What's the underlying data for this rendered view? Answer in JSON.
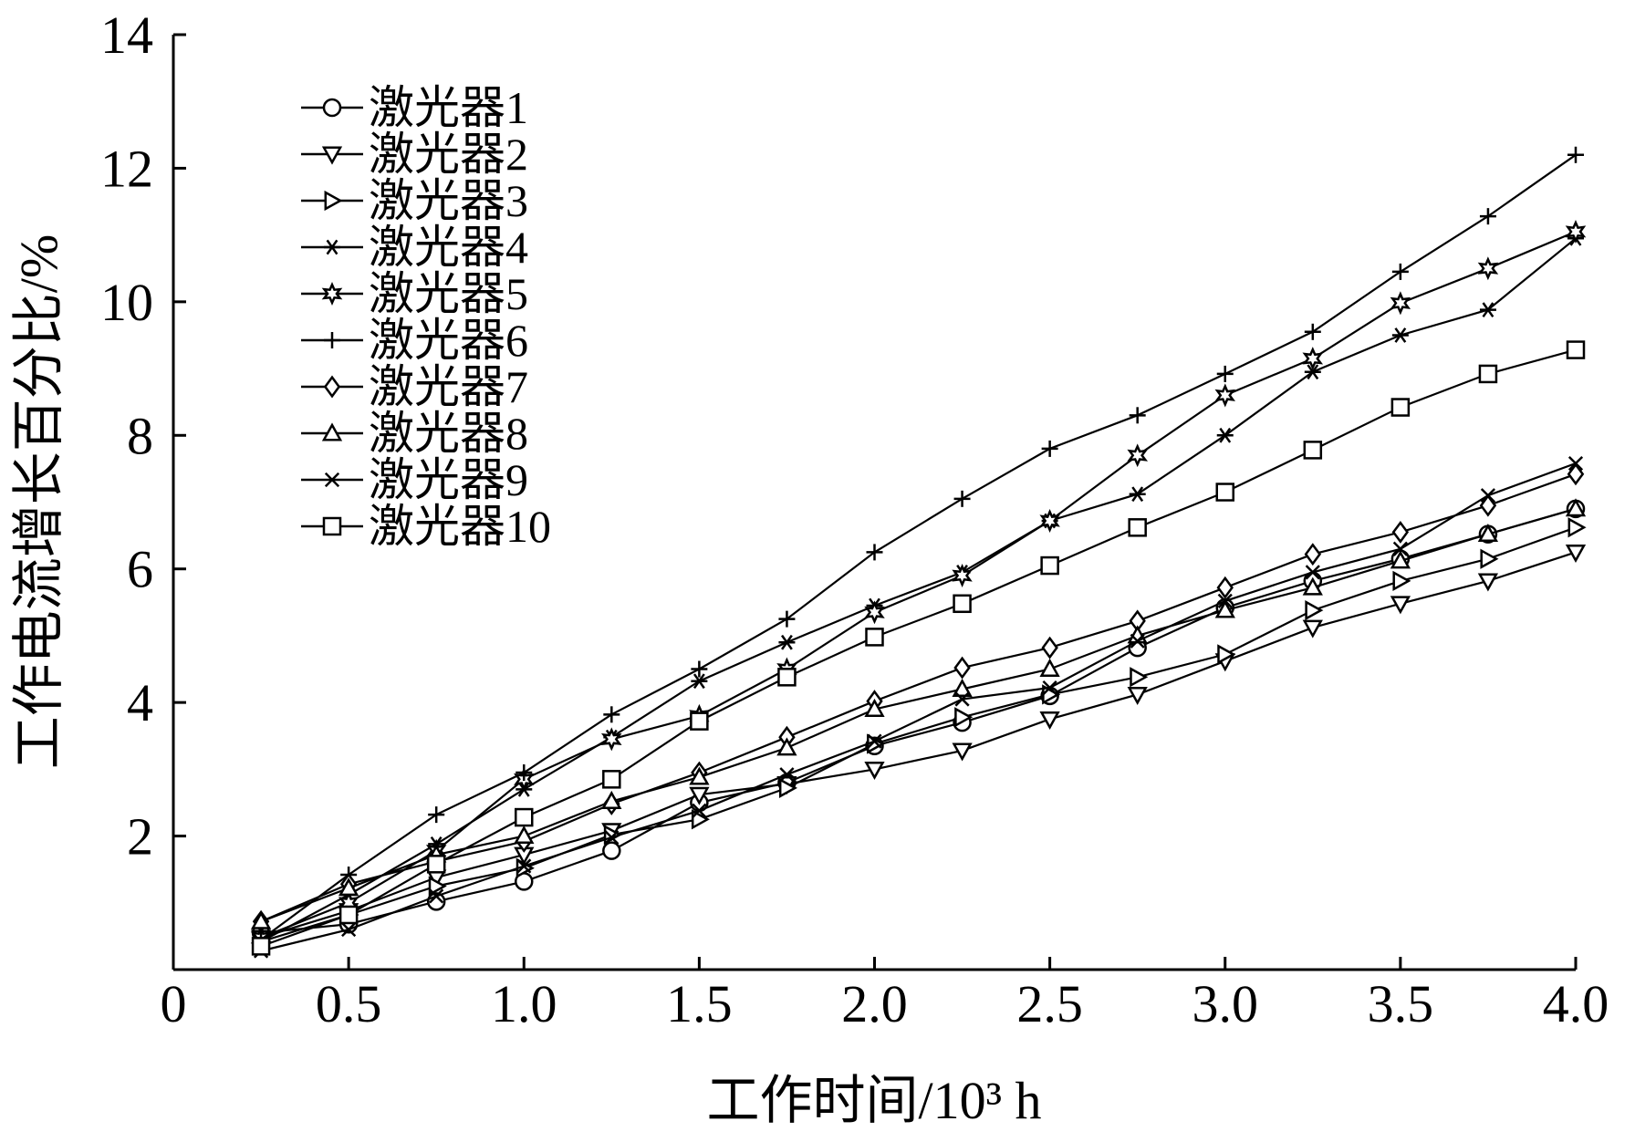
{
  "chart_data": {
    "type": "line",
    "xlabel": "工作时间/10³ h",
    "ylabel": "工作电流增长百分比/%",
    "xlim": [
      0,
      4.0
    ],
    "ylim": [
      0,
      14
    ],
    "x_ticks": [
      "0",
      "0.5",
      "1.0",
      "1.5",
      "2.0",
      "2.5",
      "3.0",
      "3.5",
      "4.0"
    ],
    "y_ticks": [
      "2",
      "4",
      "6",
      "8",
      "10",
      "12",
      "14"
    ],
    "x": [
      0.25,
      0.5,
      0.75,
      1.0,
      1.25,
      1.5,
      1.75,
      2.0,
      2.25,
      2.5,
      2.75,
      3.0,
      3.25,
      3.5,
      3.75,
      4.0
    ],
    "grid": false,
    "legend_position": "top-left",
    "line_color": "#000000",
    "series": [
      {
        "name": "激光器1",
        "marker": "circle",
        "values": [
          0.55,
          0.68,
          1.02,
          1.32,
          1.78,
          2.5,
          2.8,
          3.35,
          3.7,
          4.1,
          4.82,
          5.42,
          5.82,
          6.15,
          6.52,
          6.9
        ]
      },
      {
        "name": "激光器2",
        "marker": "triangle-down",
        "values": [
          0.48,
          0.88,
          1.38,
          1.72,
          2.08,
          2.62,
          2.78,
          3.0,
          3.28,
          3.75,
          4.12,
          4.62,
          5.12,
          5.48,
          5.82,
          6.25
        ]
      },
      {
        "name": "激光器3",
        "marker": "triangle-right",
        "values": [
          0.42,
          0.82,
          1.25,
          1.52,
          2.02,
          2.25,
          2.72,
          3.38,
          3.78,
          4.12,
          4.38,
          4.72,
          5.38,
          5.82,
          6.15,
          6.62
        ]
      },
      {
        "name": "激光器4",
        "marker": "asterisk",
        "values": [
          0.42,
          1.12,
          1.88,
          2.7,
          3.48,
          4.32,
          4.9,
          5.45,
          5.95,
          6.72,
          7.12,
          8.0,
          8.95,
          9.5,
          9.88,
          10.95
        ]
      },
      {
        "name": "激光器5",
        "marker": "star",
        "values": [
          0.48,
          1.0,
          1.78,
          2.85,
          3.45,
          3.8,
          4.5,
          5.35,
          5.9,
          6.72,
          7.7,
          8.6,
          9.15,
          9.98,
          10.5,
          11.05
        ]
      },
      {
        "name": "激光器6",
        "marker": "plus",
        "values": [
          0.45,
          1.42,
          2.32,
          2.95,
          3.82,
          4.5,
          5.25,
          6.25,
          7.05,
          7.8,
          8.3,
          8.92,
          9.55,
          10.45,
          11.28,
          12.2
        ]
      },
      {
        "name": "激光器7",
        "marker": "diamond",
        "values": [
          0.72,
          1.28,
          1.62,
          1.92,
          2.48,
          2.95,
          3.48,
          4.02,
          4.52,
          4.82,
          5.22,
          5.72,
          6.22,
          6.55,
          6.95,
          7.42
        ]
      },
      {
        "name": "激光器8",
        "marker": "triangle-up",
        "values": [
          0.72,
          1.22,
          1.72,
          2.0,
          2.52,
          2.88,
          3.32,
          3.9,
          4.2,
          4.5,
          5.0,
          5.38,
          5.72,
          6.12,
          6.52,
          6.9
        ]
      },
      {
        "name": "激光器9",
        "marker": "x",
        "values": [
          0.28,
          0.6,
          1.1,
          1.55,
          1.98,
          2.38,
          2.92,
          3.42,
          4.05,
          4.22,
          4.92,
          5.52,
          5.95,
          6.3,
          7.1,
          7.58
        ]
      },
      {
        "name": "激光器10",
        "marker": "square",
        "values": [
          0.35,
          0.82,
          1.58,
          2.28,
          2.85,
          3.72,
          4.38,
          4.98,
          5.48,
          6.05,
          6.62,
          7.15,
          7.78,
          8.42,
          8.92,
          9.28
        ]
      }
    ]
  }
}
